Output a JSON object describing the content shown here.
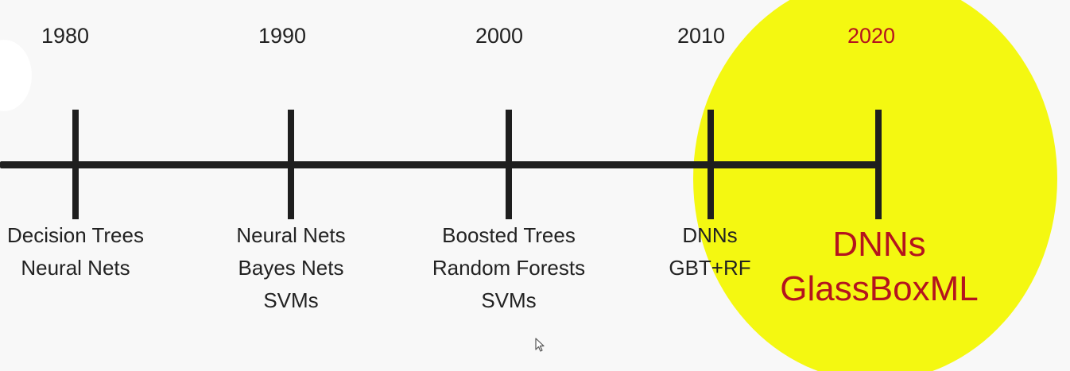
{
  "timeline": {
    "highlight_color": "#f4f811",
    "highlight_text_color": "#b4141e",
    "epochs": [
      {
        "year": "1980",
        "labels": [
          "Decision Trees",
          "Neural Nets"
        ]
      },
      {
        "year": "1990",
        "labels": [
          "Neural Nets",
          "Bayes Nets",
          "SVMs"
        ]
      },
      {
        "year": "2000",
        "labels": [
          "Boosted Trees",
          "Random Forests",
          "SVMs"
        ]
      },
      {
        "year": "2010",
        "labels": [
          "DNNs",
          "GBT+RF"
        ]
      },
      {
        "year": "2020",
        "labels": [
          "DNNs",
          "GlassBoxML"
        ]
      }
    ]
  },
  "cursor_icon": "mouse-pointer-icon"
}
